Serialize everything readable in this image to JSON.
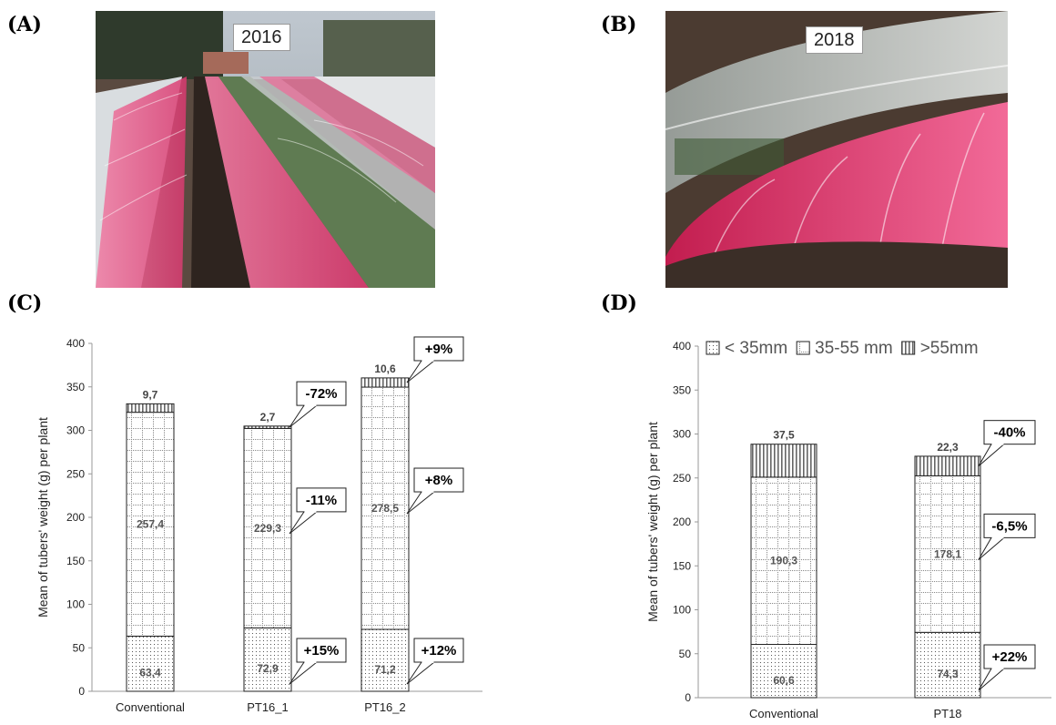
{
  "panels": {
    "a": "(A)",
    "b": "(B)",
    "c": "(C)",
    "d": "(D)"
  },
  "photos": {
    "a_year": "2016",
    "b_year": "2018"
  },
  "colors": {
    "net_pink": "#e6417a",
    "film_clear": "#d8dde0",
    "soil": "#4a3a30",
    "foliage": "#3f5a35"
  },
  "chart_data": [
    {
      "type": "bar",
      "stacked": true,
      "panel": "(C)",
      "ylabel": "Mean of tubers' weight (g) per plant",
      "xlabel": "",
      "ylim": [
        0,
        400
      ],
      "yticks": [
        0,
        50,
        100,
        150,
        200,
        250,
        300,
        350,
        400
      ],
      "categories": [
        "Conventional",
        "PT16_1",
        "PT16_2"
      ],
      "series": [
        {
          "name": "< 35mm",
          "pattern": "dots",
          "values": [
            63.4,
            72.9,
            71.2
          ],
          "labels": [
            "63,4",
            "72,9",
            "71,2"
          ]
        },
        {
          "name": "35-55 mm",
          "pattern": "grid",
          "values": [
            257.4,
            229.3,
            278.5
          ],
          "labels": [
            "257,4",
            "229,3",
            "278,5"
          ]
        },
        {
          "name": ">55mm",
          "pattern": "vlines",
          "values": [
            9.7,
            2.7,
            10.6
          ],
          "labels": [
            "9,7",
            "2,7",
            "10,6"
          ]
        }
      ],
      "callouts": [
        {
          "category": "PT16_1",
          "series": "< 35mm",
          "text": "+15%"
        },
        {
          "category": "PT16_1",
          "series": "35-55 mm",
          "text": "-11%"
        },
        {
          "category": "PT16_1",
          "series": ">55mm",
          "text": "-72%"
        },
        {
          "category": "PT16_2",
          "series": "< 35mm",
          "text": "+12%"
        },
        {
          "category": "PT16_2",
          "series": "35-55 mm",
          "text": "+8%"
        },
        {
          "category": "PT16_2",
          "series": ">55mm",
          "text": "+9%"
        }
      ],
      "legend": false,
      "grid": false
    },
    {
      "type": "bar",
      "stacked": true,
      "panel": "(D)",
      "ylabel": "Mean of tubers' weight (g) per plant",
      "xlabel": "",
      "ylim": [
        0,
        400
      ],
      "yticks": [
        0,
        50,
        100,
        150,
        200,
        250,
        300,
        350,
        400
      ],
      "categories": [
        "Conventional",
        "PT18"
      ],
      "series": [
        {
          "name": "< 35mm",
          "pattern": "dots",
          "values": [
            60.6,
            74.3
          ],
          "labels": [
            "60,6",
            "74,3"
          ]
        },
        {
          "name": "35-55 mm",
          "pattern": "grid",
          "values": [
            190.3,
            178.1
          ],
          "labels": [
            "190,3",
            "178,1"
          ]
        },
        {
          "name": ">55mm",
          "pattern": "vlines",
          "values": [
            37.5,
            22.3
          ],
          "labels": [
            "37,5",
            "22,3"
          ]
        }
      ],
      "callouts": [
        {
          "category": "PT18",
          "series": "< 35mm",
          "text": "+22%"
        },
        {
          "category": "PT18",
          "series": "35-55 mm",
          "text": "-6,5%"
        },
        {
          "category": "PT18",
          "series": ">55mm",
          "text": "-40%"
        }
      ],
      "legend": true,
      "legend_position": "top",
      "grid": false
    }
  ]
}
